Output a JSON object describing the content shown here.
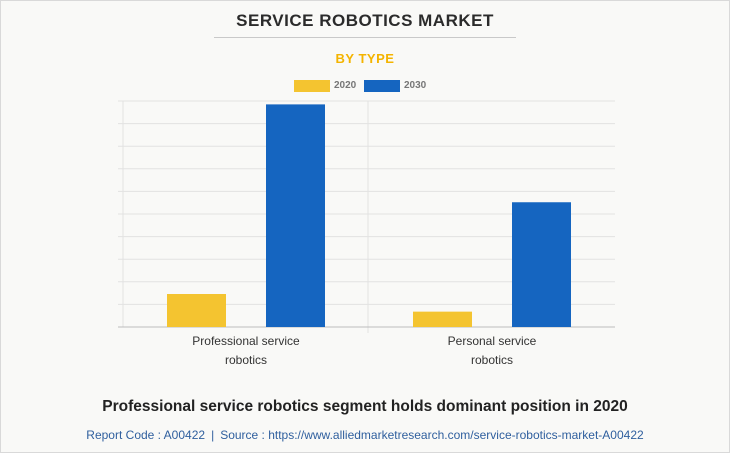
{
  "header": {
    "title": "SERVICE ROBOTICS MARKET",
    "subtitle": "BY TYPE"
  },
  "colors": {
    "series_2020": "#f4c430",
    "series_2030": "#1565c0",
    "grid": "#e2e2e2",
    "axis": "#bdbdbd"
  },
  "chart_data": {
    "type": "bar",
    "title": "SERVICE ROBOTICS MARKET",
    "subtitle": "BY TYPE",
    "categories": [
      [
        "Professional service",
        "robotics"
      ],
      [
        "Personal service",
        "robotics"
      ]
    ],
    "series": [
      {
        "name": "2020",
        "values": [
          14.6,
          6.8
        ]
      },
      {
        "name": "2030",
        "values": [
          98.5,
          55.2
        ]
      }
    ],
    "ylim": [
      0,
      100
    ],
    "yticks": 10,
    "grid": true,
    "legend": "top-center",
    "xlabel": "",
    "ylabel": ""
  },
  "footer": {
    "caption": "Professional service robotics segment holds dominant position in 2020",
    "report_code": "Report Code : A00422",
    "separator": "|",
    "source": "Source : https://www.alliedmarketresearch.com/service-robotics-market-A00422"
  }
}
